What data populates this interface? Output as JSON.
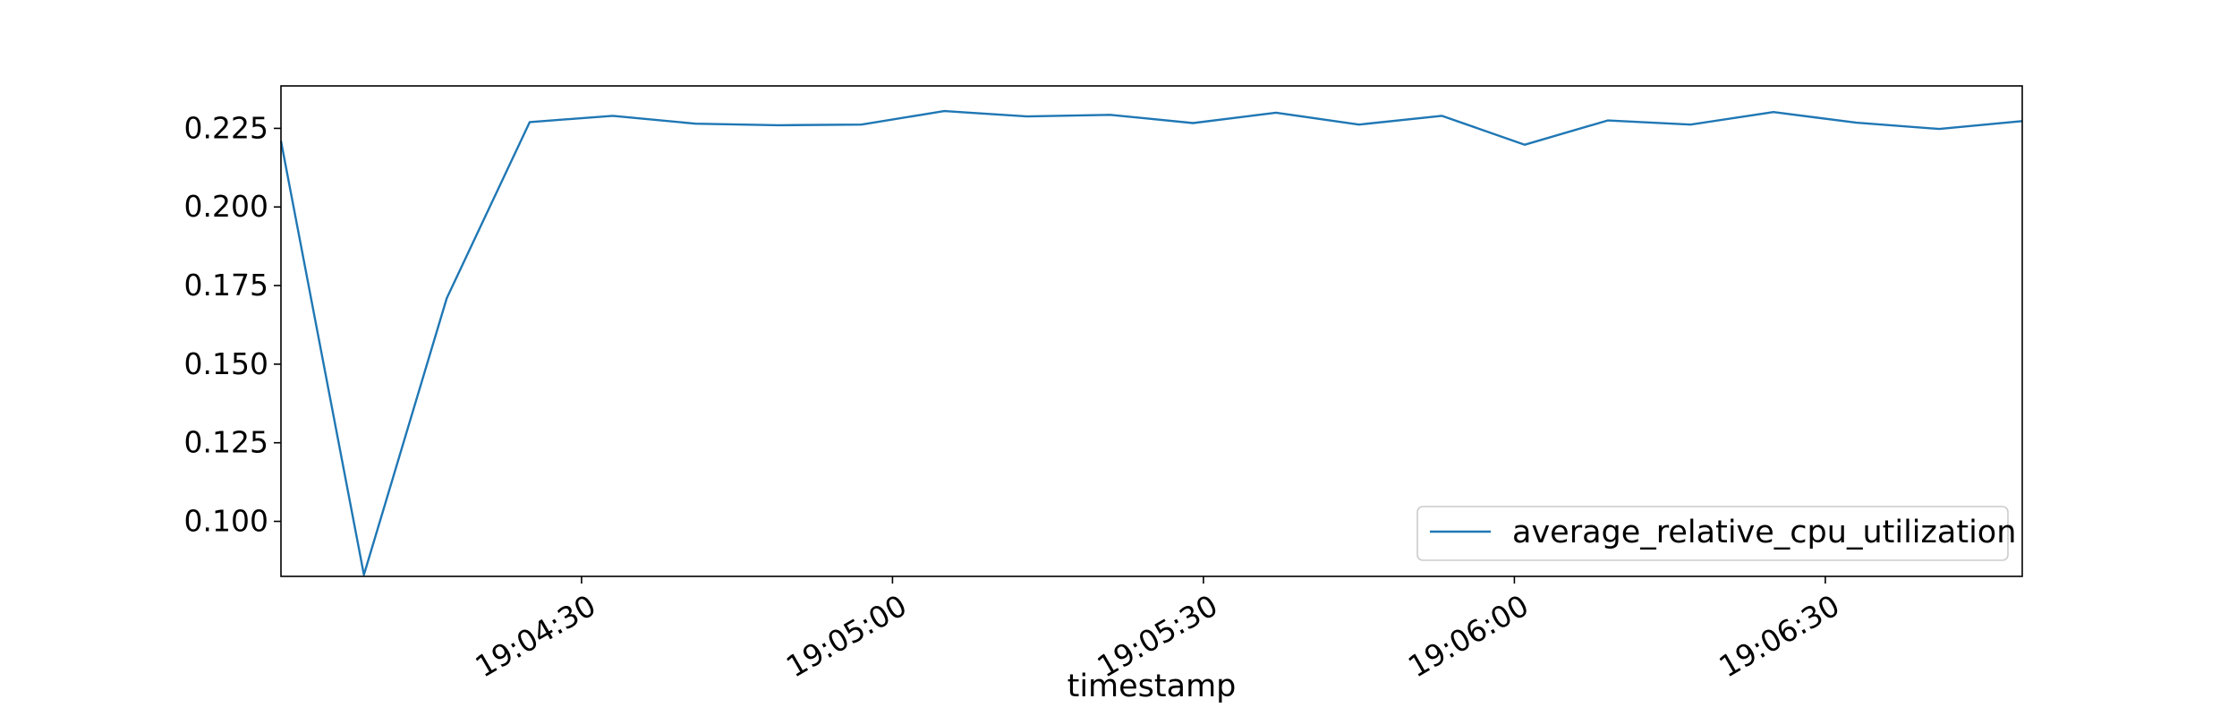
{
  "chart_data": {
    "type": "line",
    "title": "",
    "xlabel": "timestamp",
    "ylabel": "",
    "x_ticks": [
      "19:04:30",
      "19:05:00",
      "19:05:30",
      "19:06:00",
      "19:06:30"
    ],
    "y_ticks": [
      "0.100",
      "0.125",
      "0.150",
      "0.175",
      "0.200",
      "0.225"
    ],
    "ylim": [
      0.0825,
      0.2385
    ],
    "x_range": [
      "19:04:01",
      "19:06:49"
    ],
    "grid": false,
    "legend": "bottom-right",
    "series": [
      {
        "name": "average_relative_cpu_utilization",
        "color": "#1f77b4",
        "x": [
          "19:04:01",
          "19:04:09",
          "19:04:17",
          "19:04:25",
          "19:04:33",
          "19:04:41",
          "19:04:49",
          "19:04:57",
          "19:05:05",
          "19:05:13",
          "19:05:21",
          "19:05:29",
          "19:05:37",
          "19:05:45",
          "19:05:53",
          "19:06:01",
          "19:06:09",
          "19:06:17",
          "19:06:25",
          "19:06:33",
          "19:06:41",
          "19:06:49"
        ],
        "y": [
          0.221,
          0.083,
          0.171,
          0.227,
          0.229,
          0.2265,
          0.226,
          0.2262,
          0.2305,
          0.2288,
          0.2293,
          0.2267,
          0.23,
          0.2262,
          0.229,
          0.2198,
          0.2275,
          0.2262,
          0.2302,
          0.2268,
          0.2248,
          0.2273
        ]
      }
    ]
  }
}
